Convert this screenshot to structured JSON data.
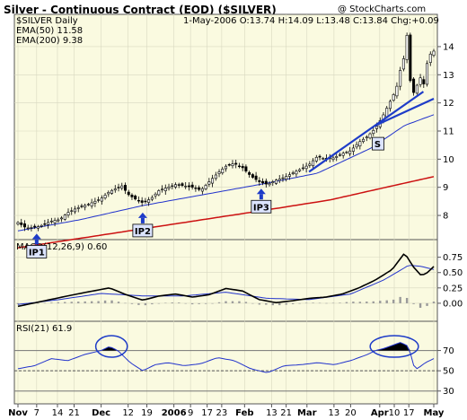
{
  "header": {
    "title": "Silver - Continuous Contract (EOD) ($SILVER)",
    "watermark": "@ StockCharts.com",
    "symbol_label": "$SILVER Daily",
    "quote": "1-May-2006 O:13.74 H:14.09 L:13.48 C:13.84 Chg:+0.09"
  },
  "colors": {
    "panel_bg": "#fafae0",
    "ema50": "#2233cc",
    "ema200": "#cc1111",
    "annotation_blue": "#1e3cc8",
    "macd_line": "#000000",
    "signal_line": "#2233cc",
    "histogram": "#9a9a9a",
    "rsi_line": "#2233cc"
  },
  "chart_data": [
    {
      "type": "line",
      "title": "Silver - Continuous Contract (EOD) ($SILVER)",
      "legend": [
        {
          "label": "EMA(50) 11.58",
          "color": "#2233cc"
        },
        {
          "label": "EMA(200) 9.38",
          "color": "#cc1111"
        }
      ],
      "ylim": [
        7.3,
        14.7
      ],
      "y_ticks": [
        8,
        9,
        10,
        11,
        12,
        13,
        14
      ],
      "x_range": [
        0,
        1
      ],
      "anchors": {
        "price_close": [
          [
            0,
            7.75
          ],
          [
            0.02,
            7.55
          ],
          [
            0.05,
            7.6
          ],
          [
            0.08,
            7.8
          ],
          [
            0.1,
            7.85
          ],
          [
            0.12,
            8.1
          ],
          [
            0.14,
            8.25
          ],
          [
            0.17,
            8.4
          ],
          [
            0.2,
            8.6
          ],
          [
            0.22,
            8.85
          ],
          [
            0.25,
            9.05
          ],
          [
            0.265,
            8.75
          ],
          [
            0.28,
            8.6
          ],
          [
            0.3,
            8.45
          ],
          [
            0.32,
            8.6
          ],
          [
            0.34,
            8.9
          ],
          [
            0.36,
            9.0
          ],
          [
            0.38,
            9.1
          ],
          [
            0.42,
            9.0
          ],
          [
            0.44,
            8.9
          ],
          [
            0.46,
            9.2
          ],
          [
            0.48,
            9.5
          ],
          [
            0.5,
            9.75
          ],
          [
            0.52,
            9.85
          ],
          [
            0.54,
            9.7
          ],
          [
            0.56,
            9.4
          ],
          [
            0.58,
            9.2
          ],
          [
            0.6,
            9.1
          ],
          [
            0.62,
            9.25
          ],
          [
            0.64,
            9.35
          ],
          [
            0.66,
            9.5
          ],
          [
            0.68,
            9.65
          ],
          [
            0.7,
            9.8
          ],
          [
            0.72,
            10.1
          ],
          [
            0.74,
            10.0
          ],
          [
            0.76,
            10.05
          ],
          [
            0.78,
            10.2
          ],
          [
            0.8,
            10.3
          ],
          [
            0.82,
            10.6
          ],
          [
            0.84,
            10.8
          ],
          [
            0.86,
            11.1
          ],
          [
            0.88,
            11.6
          ],
          [
            0.9,
            12.2
          ],
          [
            0.91,
            12.5
          ],
          [
            0.92,
            13.2
          ],
          [
            0.93,
            13.7
          ],
          [
            0.935,
            14.5
          ],
          [
            0.945,
            12.5
          ],
          [
            0.955,
            12.3
          ],
          [
            0.965,
            13.0
          ],
          [
            0.975,
            12.6
          ],
          [
            0.985,
            13.5
          ],
          [
            0.995,
            13.84
          ],
          [
            1,
            13.84
          ]
        ],
        "ema50": [
          [
            0,
            7.45
          ],
          [
            0.15,
            7.85
          ],
          [
            0.3,
            8.35
          ],
          [
            0.45,
            8.75
          ],
          [
            0.6,
            9.15
          ],
          [
            0.72,
            9.5
          ],
          [
            0.85,
            10.4
          ],
          [
            0.93,
            11.2
          ],
          [
            1,
            11.58
          ]
        ],
        "ema200": [
          [
            0,
            6.85
          ],
          [
            0.2,
            7.3
          ],
          [
            0.4,
            7.75
          ],
          [
            0.6,
            8.2
          ],
          [
            0.75,
            8.55
          ],
          [
            0.9,
            9.05
          ],
          [
            1,
            9.38
          ]
        ]
      },
      "annotations": [
        {
          "label": "IP1",
          "x": 0.045,
          "y": 7.35
        },
        {
          "label": "IP2",
          "x": 0.3,
          "y": 8.1
        },
        {
          "label": "IP3",
          "x": 0.585,
          "y": 8.95
        },
        {
          "label": "S",
          "x": 0.865,
          "y": 10.55
        }
      ],
      "trendline": {
        "x": [
          0.7,
          0.975
        ],
        "y": [
          9.55,
          12.4
        ]
      },
      "trendline2": {
        "x": [
          0.86,
          1.0
        ],
        "y": [
          11.2,
          12.15
        ]
      },
      "grid": true
    },
    {
      "type": "line",
      "title": "MACD(12,26,9) 0.60",
      "ylim": [
        -0.25,
        0.92
      ],
      "y_ticks": [
        0.0,
        0.25,
        0.5,
        0.75
      ],
      "anchors": {
        "macd": [
          [
            0,
            -0.05
          ],
          [
            0.05,
            0.02
          ],
          [
            0.12,
            0.12
          ],
          [
            0.18,
            0.2
          ],
          [
            0.22,
            0.25
          ],
          [
            0.26,
            0.14
          ],
          [
            0.3,
            0.05
          ],
          [
            0.34,
            0.12
          ],
          [
            0.38,
            0.15
          ],
          [
            0.42,
            0.1
          ],
          [
            0.46,
            0.14
          ],
          [
            0.5,
            0.24
          ],
          [
            0.54,
            0.2
          ],
          [
            0.58,
            0.06
          ],
          [
            0.62,
            0.01
          ],
          [
            0.66,
            0.04
          ],
          [
            0.7,
            0.08
          ],
          [
            0.74,
            0.1
          ],
          [
            0.78,
            0.15
          ],
          [
            0.82,
            0.25
          ],
          [
            0.86,
            0.38
          ],
          [
            0.9,
            0.55
          ],
          [
            0.93,
            0.82
          ],
          [
            0.95,
            0.6
          ],
          [
            0.97,
            0.45
          ],
          [
            0.985,
            0.5
          ],
          [
            1,
            0.6
          ]
        ],
        "signal": [
          [
            0,
            -0.02
          ],
          [
            0.1,
            0.06
          ],
          [
            0.2,
            0.16
          ],
          [
            0.3,
            0.12
          ],
          [
            0.4,
            0.12
          ],
          [
            0.5,
            0.18
          ],
          [
            0.6,
            0.08
          ],
          [
            0.7,
            0.06
          ],
          [
            0.8,
            0.15
          ],
          [
            0.88,
            0.38
          ],
          [
            0.94,
            0.62
          ],
          [
            0.97,
            0.6
          ],
          [
            1,
            0.55
          ]
        ]
      },
      "grid": true
    },
    {
      "type": "line",
      "title": "RSI(21) 61.9",
      "ylim": [
        20,
        90
      ],
      "y_ticks": [
        30,
        50,
        70
      ],
      "anchors": {
        "rsi": [
          [
            0,
            52
          ],
          [
            0.04,
            55
          ],
          [
            0.08,
            62
          ],
          [
            0.12,
            60
          ],
          [
            0.16,
            66
          ],
          [
            0.2,
            70
          ],
          [
            0.22,
            74
          ],
          [
            0.24,
            70
          ],
          [
            0.27,
            58
          ],
          [
            0.3,
            50
          ],
          [
            0.33,
            56
          ],
          [
            0.36,
            58
          ],
          [
            0.4,
            55
          ],
          [
            0.44,
            57
          ],
          [
            0.48,
            63
          ],
          [
            0.52,
            60
          ],
          [
            0.56,
            52
          ],
          [
            0.6,
            48
          ],
          [
            0.64,
            55
          ],
          [
            0.68,
            56
          ],
          [
            0.72,
            58
          ],
          [
            0.76,
            56
          ],
          [
            0.8,
            60
          ],
          [
            0.84,
            66
          ],
          [
            0.86,
            70
          ],
          [
            0.88,
            72
          ],
          [
            0.9,
            75
          ],
          [
            0.92,
            78
          ],
          [
            0.94,
            74
          ],
          [
            0.95,
            56
          ],
          [
            0.96,
            52
          ],
          [
            0.98,
            58
          ],
          [
            1,
            62
          ]
        ]
      },
      "highlights": [
        [
          0.2,
          0.25
        ],
        [
          0.86,
          0.95
        ]
      ],
      "grid": true
    }
  ],
  "x_axis": {
    "ticks": [
      {
        "label": "Nov",
        "x": 0.0,
        "bold": true
      },
      {
        "label": "7",
        "x": 0.045
      },
      {
        "label": "14",
        "x": 0.095
      },
      {
        "label": "21",
        "x": 0.135
      },
      {
        "label": "Dec",
        "x": 0.2,
        "bold": true
      },
      {
        "label": "12",
        "x": 0.265
      },
      {
        "label": "19",
        "x": 0.31
      },
      {
        "label": "2006",
        "x": 0.375,
        "bold": true
      },
      {
        "label": "9",
        "x": 0.415
      },
      {
        "label": "17",
        "x": 0.455
      },
      {
        "label": "23",
        "x": 0.49
      },
      {
        "label": "Feb",
        "x": 0.545,
        "bold": true
      },
      {
        "label": "13",
        "x": 0.61
      },
      {
        "label": "21",
        "x": 0.645
      },
      {
        "label": "Mar",
        "x": 0.695,
        "bold": true
      },
      {
        "label": "13",
        "x": 0.76
      },
      {
        "label": "20",
        "x": 0.8
      },
      {
        "label": "Apr",
        "x": 0.87,
        "bold": true
      },
      {
        "label": "10",
        "x": 0.905
      },
      {
        "label": "17",
        "x": 0.94
      },
      {
        "label": "May",
        "x": 1.0,
        "bold": true
      }
    ]
  }
}
